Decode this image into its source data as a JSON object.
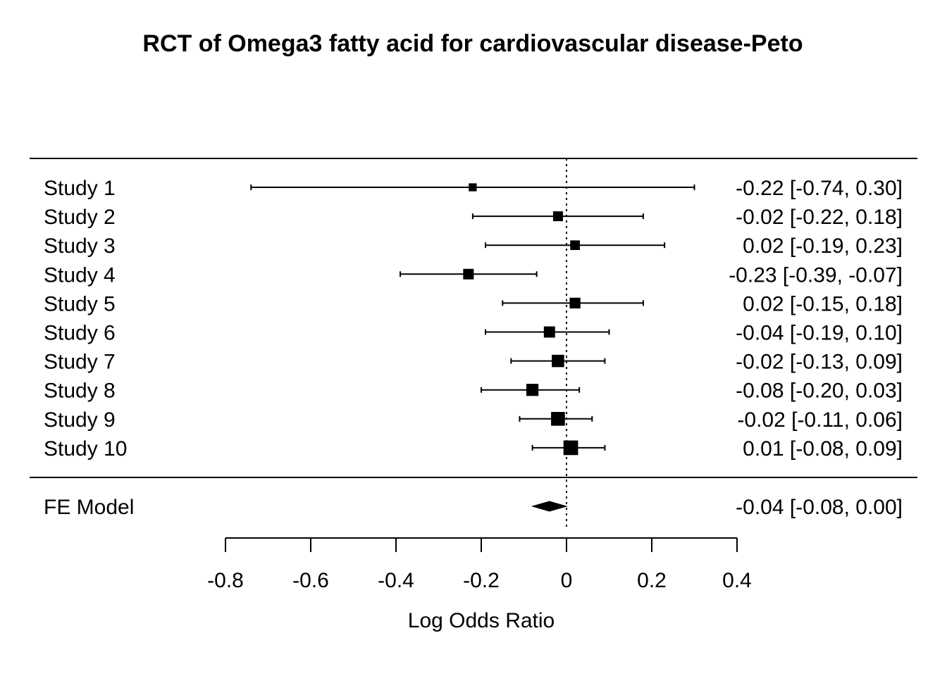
{
  "chart_data": {
    "type": "forest",
    "title": "RCT of Omega3 fatty acid for cardiovascular disease-Peto",
    "xlabel": "Log Odds Ratio",
    "xlim": [
      -0.8,
      0.4
    ],
    "xticks": [
      -0.8,
      -0.6,
      -0.4,
      -0.2,
      0,
      0.2,
      0.4
    ],
    "xtick_labels": [
      "-0.8",
      "-0.6",
      "-0.4",
      "-0.2",
      "0",
      "0.2",
      "0.4"
    ],
    "reference_line": 0,
    "studies": [
      {
        "label": "Study 1",
        "estimate": -0.22,
        "ci_lower": -0.74,
        "ci_upper": 0.3,
        "text": "-0.22 [-0.74,  0.30]",
        "weight": 0.33
      },
      {
        "label": "Study 2",
        "estimate": -0.02,
        "ci_lower": -0.22,
        "ci_upper": 0.18,
        "text": "-0.02 [-0.22,  0.18]",
        "weight": 0.5
      },
      {
        "label": "Study 3",
        "estimate": 0.02,
        "ci_lower": -0.19,
        "ci_upper": 0.23,
        "text": "0.02 [-0.19,  0.23]",
        "weight": 0.48
      },
      {
        "label": "Study 4",
        "estimate": -0.23,
        "ci_lower": -0.39,
        "ci_upper": -0.07,
        "text": "-0.23 [-0.39, -0.07]",
        "weight": 0.56
      },
      {
        "label": "Study 5",
        "estimate": 0.02,
        "ci_lower": -0.15,
        "ci_upper": 0.18,
        "text": "0.02 [-0.15,  0.18]",
        "weight": 0.58
      },
      {
        "label": "Study 6",
        "estimate": -0.04,
        "ci_lower": -0.19,
        "ci_upper": 0.1,
        "text": "-0.04 [-0.19,  0.10]",
        "weight": 0.62
      },
      {
        "label": "Study 7",
        "estimate": -0.02,
        "ci_lower": -0.13,
        "ci_upper": 0.09,
        "text": "-0.02 [-0.13,  0.09]",
        "weight": 0.72
      },
      {
        "label": "Study 8",
        "estimate": -0.08,
        "ci_lower": -0.2,
        "ci_upper": 0.03,
        "text": "-0.08 [-0.20,  0.03]",
        "weight": 0.7
      },
      {
        "label": "Study 9",
        "estimate": -0.02,
        "ci_lower": -0.11,
        "ci_upper": 0.06,
        "text": "-0.02 [-0.11,  0.06]",
        "weight": 0.85
      },
      {
        "label": "Study 10",
        "estimate": 0.01,
        "ci_lower": -0.08,
        "ci_upper": 0.09,
        "text": "0.01 [-0.08,  0.09]",
        "weight": 0.92
      }
    ],
    "summary": {
      "label": "FE Model",
      "estimate": -0.04,
      "ci_lower": -0.08,
      "ci_upper": 0.0,
      "text": "-0.04 [-0.08,  0.00]"
    }
  }
}
